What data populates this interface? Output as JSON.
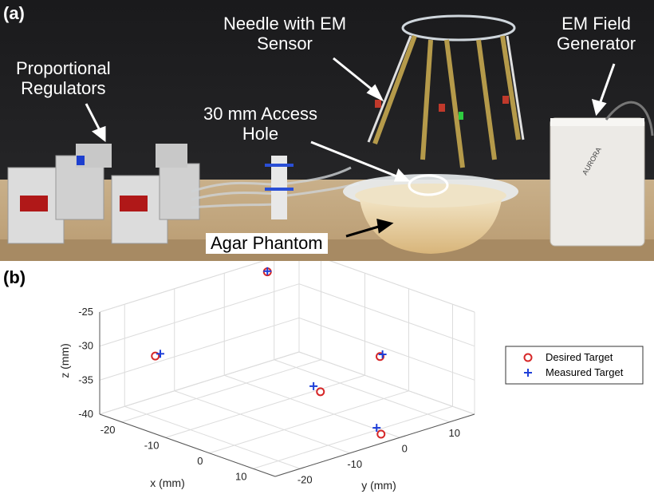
{
  "figure": {
    "panel_a_label": "(a)",
    "panel_b_label": "(b)",
    "annotations": {
      "needle_line1": "Needle with EM",
      "needle_line2": "Sensor",
      "field_gen_line1": "EM Field",
      "field_gen_line2": "Generator",
      "regulators_line1": "Proportional",
      "regulators_line2": "Regulators",
      "access_line1": "30 mm Access",
      "access_line2": "Hole",
      "phantom": "Agar Phantom"
    },
    "brand_text": "AURORA",
    "colors": {
      "desired": "#d62728",
      "measured": "#1f3fd8"
    }
  },
  "chart_data": {
    "type": "scatter",
    "dimensions": "3d",
    "xlabel": "x (mm)",
    "ylabel": "y (mm)",
    "zlabel": "z (mm)",
    "xlim": [
      -25,
      15
    ],
    "ylim": [
      -25,
      15
    ],
    "zlim": [
      -40,
      -25
    ],
    "x_ticks": [
      "-20",
      "-10",
      "0",
      "10"
    ],
    "y_ticks": [
      "-20",
      "-10",
      "0",
      "10"
    ],
    "z_ticks": [
      "-25",
      "-30",
      "-35",
      "-40"
    ],
    "grid": true,
    "legend_position": "right",
    "series": [
      {
        "name": "Desired Target",
        "marker": "circle",
        "points": [
          {
            "x": -22,
            "y": 6,
            "z": -25.5
          },
          {
            "x": -2,
            "y": 11,
            "z": -34.5
          },
          {
            "x": -18,
            "y": -20,
            "z": -31
          },
          {
            "x": 6,
            "y": -8,
            "z": -33.5
          },
          {
            "x": 13,
            "y": -2,
            "z": -39.5
          }
        ]
      },
      {
        "name": "Measured Target",
        "marker": "plus",
        "points": [
          {
            "x": -22,
            "y": 6,
            "z": -25.4
          },
          {
            "x": -2,
            "y": 11.5,
            "z": -34.3
          },
          {
            "x": -18,
            "y": -19,
            "z": -30.9
          },
          {
            "x": 5,
            "y": -8.5,
            "z": -32.8
          },
          {
            "x": 12,
            "y": -2,
            "z": -38.8
          }
        ]
      }
    ]
  }
}
